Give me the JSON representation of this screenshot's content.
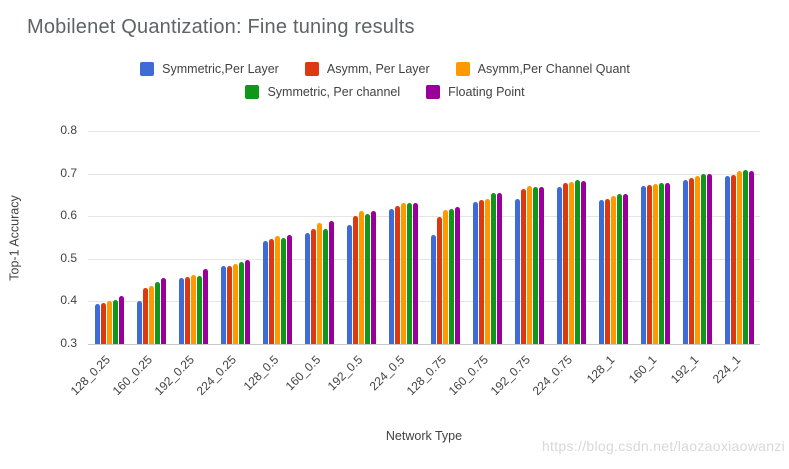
{
  "watermark": "https://blog.csdn.net/laozaoxiaowanzi",
  "chart_data": {
    "type": "bar",
    "title": "Mobilenet Quantization: Fine tuning results",
    "xlabel": "Network Type",
    "ylabel": "Top-1 Accuracy",
    "ylim": [
      0.3,
      0.8
    ],
    "yticks": [
      0.8,
      0.7,
      0.6,
      0.5,
      0.4,
      0.3
    ],
    "grid": true,
    "legend_position": "top",
    "categories": [
      "128_0.25",
      "160_0.25",
      "192_0.25",
      "224_0.25",
      "128_0.5",
      "160_0.5",
      "192_0.5",
      "224_0.5",
      "128_0.75",
      "160_0.75",
      "192_0.75",
      "224_0.75",
      "128_1",
      "160_1",
      "192_1",
      "224_1"
    ],
    "series": [
      {
        "name": "Symmetric,Per Layer",
        "color": "#3D6CD6",
        "values": [
          0.394,
          0.4,
          0.455,
          0.482,
          0.542,
          0.561,
          0.58,
          0.617,
          0.557,
          0.633,
          0.641,
          0.668,
          0.637,
          0.671,
          0.686,
          0.695
        ]
      },
      {
        "name": "Asymm, Per Layer",
        "color": "#DC3912",
        "values": [
          0.397,
          0.432,
          0.458,
          0.482,
          0.546,
          0.571,
          0.601,
          0.623,
          0.598,
          0.637,
          0.663,
          0.679,
          0.64,
          0.673,
          0.689,
          0.696
        ]
      },
      {
        "name": "Asymm,Per Channel Quant",
        "color": "#FF9900",
        "values": [
          0.4,
          0.437,
          0.462,
          0.488,
          0.553,
          0.585,
          0.613,
          0.632,
          0.614,
          0.64,
          0.67,
          0.681,
          0.647,
          0.675,
          0.694,
          0.706
        ]
      },
      {
        "name": "Symmetric, Per channel",
        "color": "#109618",
        "values": [
          0.404,
          0.446,
          0.459,
          0.492,
          0.548,
          0.569,
          0.605,
          0.63,
          0.616,
          0.655,
          0.668,
          0.684,
          0.653,
          0.679,
          0.7,
          0.708
        ]
      },
      {
        "name": "Floating Point",
        "color": "#990099",
        "values": [
          0.413,
          0.454,
          0.476,
          0.498,
          0.557,
          0.588,
          0.613,
          0.63,
          0.622,
          0.654,
          0.668,
          0.683,
          0.652,
          0.679,
          0.698,
          0.706
        ]
      }
    ]
  }
}
